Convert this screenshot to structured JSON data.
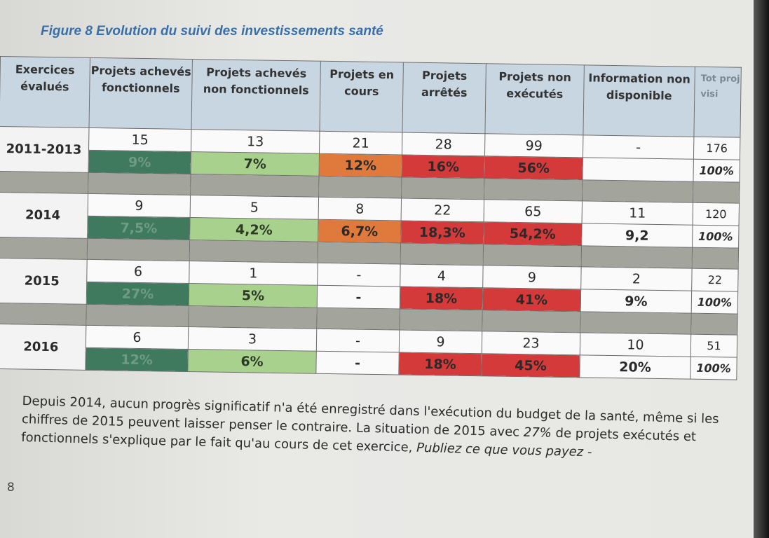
{
  "figure": {
    "title": "Figure 8 Evolution du suivi des investissements santé"
  },
  "table": {
    "headers": [
      "Exercices évalués",
      "Projets achevés fonctionnels",
      "Projets achevés non fonctionnels",
      "Projets en cours",
      "Projets arrêtés",
      "Projets non exécutés",
      "Information non disponible",
      "Tot proj visi"
    ],
    "rows": [
      {
        "year": "2011-2013",
        "counts": [
          "15",
          "13",
          "21",
          "28",
          "99",
          "-",
          "176"
        ],
        "pcts": [
          "9%",
          "7%",
          "12%",
          "16%",
          "56%",
          "",
          "100%"
        ]
      },
      {
        "year": "2014",
        "counts": [
          "9",
          "5",
          "8",
          "22",
          "65",
          "11",
          "120"
        ],
        "pcts": [
          "7,5%",
          "4,2%",
          "6,7%",
          "18,3%",
          "54,2%",
          "9,2",
          "100%"
        ]
      },
      {
        "year": "2015",
        "counts": [
          "6",
          "1",
          "-",
          "4",
          "9",
          "2",
          "22"
        ],
        "pcts": [
          "27%",
          "5%",
          "-",
          "18%",
          "41%",
          "9%",
          "100%"
        ]
      },
      {
        "year": "2016",
        "counts": [
          "6",
          "3",
          "-",
          "9",
          "23",
          "10",
          "51"
        ],
        "pcts": [
          "12%",
          "6%",
          "-",
          "18%",
          "45%",
          "20%",
          "100%"
        ]
      }
    ]
  },
  "colors": {
    "dark_green": "#3f7a5f",
    "light_green": "#a9d18e",
    "orange": "#e07a3c",
    "red": "#d43a3a",
    "header_blue": "#c8d6e2",
    "separator_gray": "#a3a59c",
    "title_blue": "#3a6fa6"
  },
  "body": {
    "line1": "Depuis 2014, aucun progrès significatif n'a été enregistré dans l'exécution du budget de la santé, même si les",
    "line2": "chiffres de 2015 peuvent laisser penser le contraire. La situation de 2015 avec",
    "line2_em": "27%",
    "line2_end": "de projets exécutés et",
    "line3": "fonctionnels s'explique par le fait qu'au cours de cet exercice,",
    "line3_em": "Publiez ce que vous payez -"
  },
  "page_number": "8"
}
